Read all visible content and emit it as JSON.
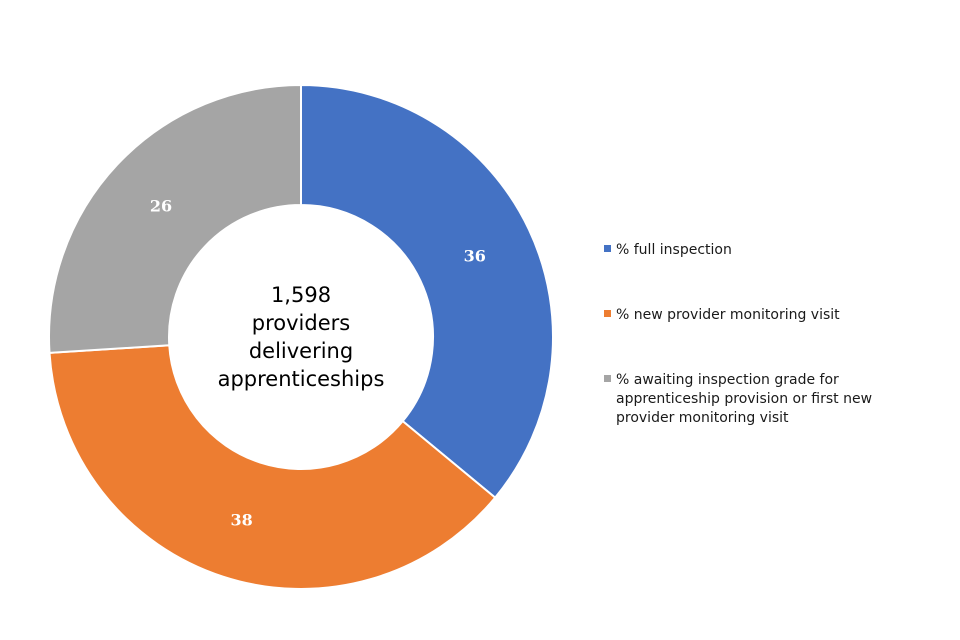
{
  "chart_data": {
    "type": "pie",
    "variant": "donut",
    "center_label": [
      "1,598",
      "providers",
      "delivering",
      "apprenticeships"
    ],
    "slices": [
      {
        "label": "% full inspection",
        "value": 36,
        "color": "#4472C4"
      },
      {
        "label": "% new provider monitoring visit",
        "value": 38,
        "color": "#ED7D31"
      },
      {
        "label": "% awaiting inspection grade for apprenticeship provision or first new provider monitoring visit",
        "value": 26,
        "color": "#A5A5A5"
      }
    ],
    "legend": {
      "placement": "right",
      "entries": [
        [
          "% full inspection"
        ],
        [
          "% new provider monitoring visit"
        ],
        [
          "% awaiting inspection grade for",
          "apprenticeship provision or first new",
          "provider monitoring visit"
        ]
      ]
    }
  }
}
